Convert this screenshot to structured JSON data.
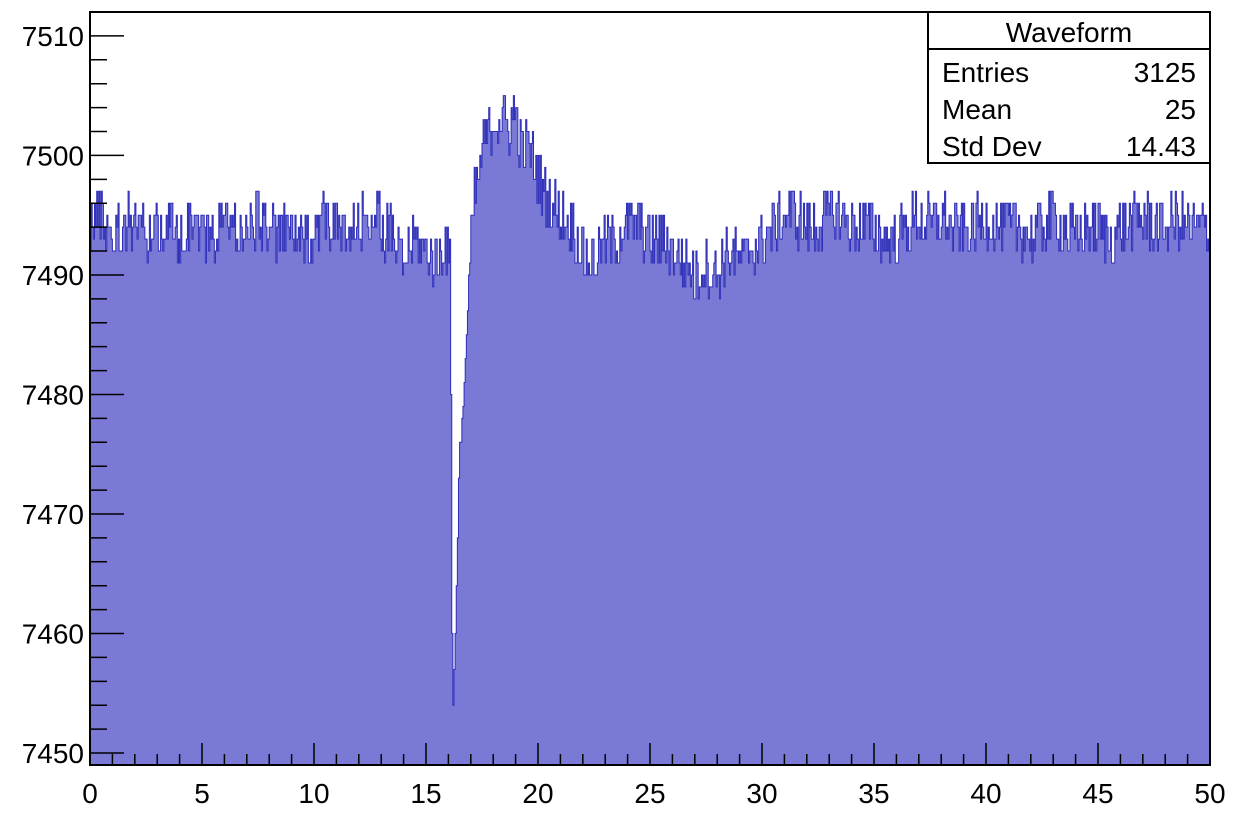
{
  "chart_data": {
    "type": "line",
    "style": "histogram-step",
    "xlim": [
      0,
      50
    ],
    "ylim": [
      7449,
      7512
    ],
    "x_ticks": [
      0,
      5,
      10,
      15,
      20,
      25,
      30,
      35,
      40,
      45,
      50
    ],
    "y_ticks": [
      7450,
      7460,
      7470,
      7480,
      7490,
      7500,
      7510
    ],
    "grid": false,
    "line_color": "#2e2eb8",
    "fill_color": "#7a7ad6",
    "baseline": 7449,
    "stats_box": {
      "title": "Waveform",
      "position": "top-right",
      "rows": [
        {
          "label": "Entries",
          "value": "3125"
        },
        {
          "label": "Mean",
          "value": "25"
        },
        {
          "label": "Std Dev",
          "value": "14.43"
        }
      ]
    },
    "series": [
      {
        "x": [
          0,
          0.5,
          1,
          1.5,
          2,
          2.5,
          3,
          3.5,
          4,
          4.5,
          5,
          5.5,
          6,
          6.5,
          7,
          7.5,
          8,
          8.5,
          9,
          9.5,
          10,
          10.5,
          11,
          11.5,
          12,
          12.5,
          13,
          13.5,
          14,
          14.5,
          15,
          15.5,
          15.9,
          16.1,
          16.2,
          16.35,
          16.5,
          16.7,
          16.9,
          17.1,
          17.3,
          17.5,
          17.8,
          18.1,
          18.4,
          18.7,
          19,
          19.3,
          19.6,
          19.9,
          20.2,
          20.6,
          21,
          21.5,
          22,
          22.5,
          23,
          23.5,
          24,
          24.5,
          25,
          25.5,
          26,
          26.5,
          27,
          27.5,
          28,
          28.5,
          29,
          29.5,
          30,
          30.5,
          31,
          31.5,
          32,
          32.5,
          33,
          33.5,
          34,
          34.5,
          35,
          35.5,
          36,
          36.5,
          37,
          37.5,
          38,
          38.5,
          39,
          39.5,
          40,
          40.5,
          41,
          41.5,
          42,
          42.5,
          43,
          43.5,
          44,
          44.5,
          45,
          45.5,
          46,
          46.5,
          47,
          47.5,
          48,
          48.5,
          49,
          49.5,
          50
        ],
        "values": [
          7494,
          7495,
          7493,
          7494,
          7495,
          7493,
          7494,
          7494,
          7493,
          7495,
          7494,
          7493,
          7495,
          7494,
          7493,
          7495,
          7494,
          7493,
          7494,
          7492,
          7494,
          7495,
          7494,
          7493,
          7494,
          7495,
          7494,
          7493,
          7491,
          7493,
          7492,
          7491,
          7493,
          7490,
          7452,
          7462,
          7475,
          7480,
          7488,
          7495,
          7498,
          7500,
          7502,
          7503,
          7503,
          7502,
          7504,
          7500,
          7501,
          7499,
          7497,
          7496,
          7495,
          7494,
          7492,
          7491,
          7493,
          7493,
          7494,
          7494,
          7493,
          7493,
          7492,
          7491,
          7490,
          7491,
          7490,
          7492,
          7491,
          7492,
          7493,
          7494,
          7495,
          7495,
          7494,
          7494,
          7495,
          7495,
          7494,
          7494,
          7494,
          7493,
          7493,
          7494,
          7495,
          7494,
          7495,
          7494,
          7494,
          7494,
          7495,
          7494,
          7494,
          7494,
          7493,
          7494,
          7495,
          7494,
          7493,
          7494,
          7494,
          7493,
          7494,
          7494,
          7495,
          7494,
          7494,
          7495,
          7494,
          7494,
          7494
        ]
      }
    ]
  }
}
